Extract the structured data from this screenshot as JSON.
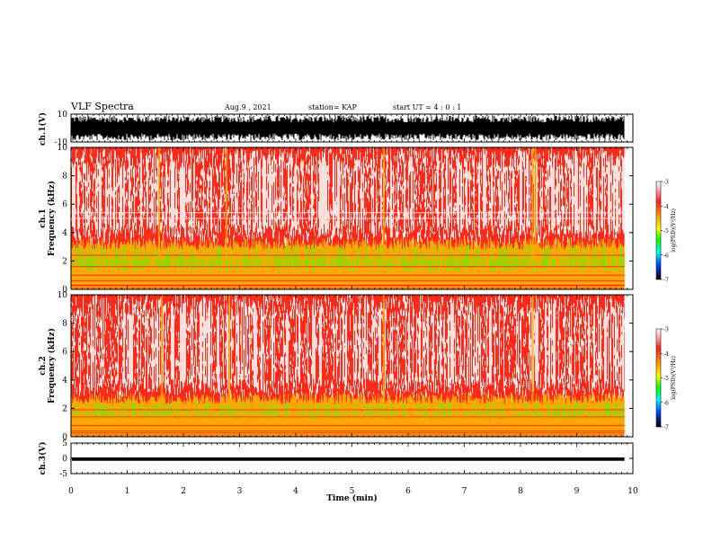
{
  "header": {
    "title": "VLF Spectra",
    "date": "Aug.9 , 2021",
    "station": "station= KAP",
    "start_ut": "start UT = 4 : 0 : 1"
  },
  "chart_data": [
    {
      "type": "line",
      "panel": "ch1-waveform",
      "ylabel": "ch.1(V)",
      "yticks": [
        "10",
        "-10"
      ],
      "ylim": [
        -10,
        10
      ],
      "description_values": {
        "envelope_min": -9,
        "envelope_max": 9
      },
      "color": "#000000"
    },
    {
      "type": "heatmap",
      "panel": "ch1-spectrogram",
      "ylabel": "ch.1\nFrequency (kHz)",
      "ylabel_line1": "ch.1",
      "ylabel_line2": "Frequency (kHz)",
      "ylim": [
        0,
        10
      ],
      "yticks": [
        "0",
        "2",
        "4",
        "6",
        "8",
        "10"
      ],
      "x_range_min": [
        0,
        9.85
      ],
      "band_green_top_khz": 3.2,
      "band_yellow_top_khz": 3.6,
      "lines_khz": [
        0.3,
        0.6,
        1.0,
        1.6,
        2.4,
        5.0,
        5.4
      ],
      "bright_columns_min": [
        1.55,
        2.75,
        5.55,
        8.2,
        8.25
      ]
    },
    {
      "type": "heatmap",
      "panel": "ch2-spectrogram",
      "ylabel_line1": "ch.2",
      "ylabel_line2": "Frequency (kHz)",
      "ylim": [
        0,
        10
      ],
      "yticks": [
        "0",
        "2",
        "4",
        "6",
        "8",
        "10"
      ],
      "x_range_min": [
        0,
        9.85
      ],
      "band_green_top_khz": 2.6,
      "band_yellow_top_khz": 3.1,
      "lines_khz": [
        0.4,
        0.8,
        1.4,
        1.9
      ],
      "bright_columns_min": [
        1.6,
        2.8,
        5.55,
        8.2
      ]
    },
    {
      "type": "line",
      "panel": "ch3-waveform",
      "ylabel": "ch.3(V)",
      "yticks": [
        "5",
        "0",
        "-5"
      ],
      "ylim": [
        -5,
        5
      ],
      "description_values": {
        "band_min": -0.8,
        "band_max": 0.3
      },
      "color": "#000000"
    }
  ],
  "xaxis": {
    "label": "Time (min)",
    "ticks": [
      "0",
      "1",
      "2",
      "3",
      "4",
      "5",
      "6",
      "7",
      "8",
      "9",
      "10"
    ],
    "xlim": [
      0,
      10
    ]
  },
  "colorbars": [
    {
      "label": "log(PSD)(V²/Hz)",
      "ticks": [
        "-3",
        "-4",
        "-5",
        "-6",
        "-7"
      ],
      "range": [
        -7,
        -3
      ]
    },
    {
      "label": "log(PSD)(V²/Hz)",
      "ticks": [
        "-3",
        "-4",
        "-5",
        "-6",
        "-7"
      ],
      "range": [
        -7,
        -3
      ]
    }
  ]
}
